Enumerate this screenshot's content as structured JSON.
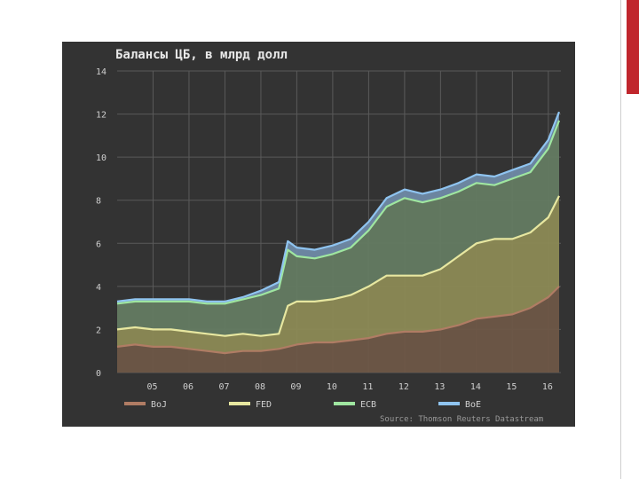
{
  "slide": {
    "accent_color": "#c0262d",
    "background": "#ffffff"
  },
  "chart_data": {
    "type": "area",
    "stacked": true,
    "title": "Балансы ЦБ, в млрд долл",
    "xlabel": "",
    "ylabel": "",
    "source": "Source: Thomson Reuters Datastream",
    "ylim": [
      0,
      14
    ],
    "yticks": [
      0,
      2,
      4,
      6,
      8,
      10,
      12,
      14
    ],
    "xlim": [
      2004.0,
      2016.35
    ],
    "xticks": [
      2005,
      2006,
      2007,
      2008,
      2009,
      2010,
      2011,
      2012,
      2013,
      2014,
      2015,
      2016
    ],
    "xtick_labels": [
      "05",
      "06",
      "07",
      "08",
      "09",
      "10",
      "11",
      "12",
      "13",
      "14",
      "15",
      "16"
    ],
    "grid": true,
    "legend_position": "bottom",
    "x": [
      2004.0,
      2004.5,
      2005.0,
      2005.5,
      2006.0,
      2006.5,
      2007.0,
      2007.5,
      2008.0,
      2008.5,
      2008.75,
      2009.0,
      2009.5,
      2010.0,
      2010.5,
      2011.0,
      2011.5,
      2012.0,
      2012.5,
      2013.0,
      2013.5,
      2014.0,
      2014.5,
      2015.0,
      2015.5,
      2016.0,
      2016.3
    ],
    "series": [
      {
        "name": "BoJ",
        "color": "#b07c64",
        "fill": "#6e5747",
        "values": [
          1.2,
          1.3,
          1.2,
          1.2,
          1.1,
          1.0,
          0.9,
          1.0,
          1.0,
          1.1,
          1.2,
          1.3,
          1.4,
          1.4,
          1.5,
          1.6,
          1.8,
          1.9,
          1.9,
          2.0,
          2.2,
          2.5,
          2.6,
          2.7,
          3.0,
          3.5,
          4.0
        ]
      },
      {
        "name": "FED",
        "color": "#e7e7a0",
        "fill": "#8c8a55",
        "values": [
          0.8,
          0.8,
          0.8,
          0.8,
          0.8,
          0.8,
          0.8,
          0.8,
          0.7,
          0.7,
          1.9,
          2.0,
          1.9,
          2.0,
          2.1,
          2.4,
          2.7,
          2.6,
          2.6,
          2.8,
          3.2,
          3.5,
          3.6,
          3.5,
          3.5,
          3.7,
          4.2
        ]
      },
      {
        "name": "ECB",
        "color": "#9fe6a0",
        "fill": "#647b62",
        "values": [
          1.2,
          1.2,
          1.3,
          1.3,
          1.4,
          1.4,
          1.5,
          1.6,
          1.9,
          2.1,
          2.6,
          2.1,
          2.0,
          2.1,
          2.2,
          2.6,
          3.2,
          3.6,
          3.4,
          3.3,
          3.0,
          2.8,
          2.5,
          2.8,
          2.8,
          3.2,
          3.5
        ]
      },
      {
        "name": "BoE",
        "color": "#8fc4f0",
        "fill": "#6f8aa6",
        "values": [
          0.1,
          0.1,
          0.1,
          0.1,
          0.1,
          0.1,
          0.1,
          0.1,
          0.2,
          0.3,
          0.4,
          0.4,
          0.4,
          0.4,
          0.4,
          0.4,
          0.4,
          0.4,
          0.4,
          0.4,
          0.4,
          0.4,
          0.4,
          0.4,
          0.4,
          0.4,
          0.4
        ]
      }
    ],
    "legend_labels": [
      "BoJ",
      "FED",
      "ECB",
      "BoE"
    ]
  }
}
